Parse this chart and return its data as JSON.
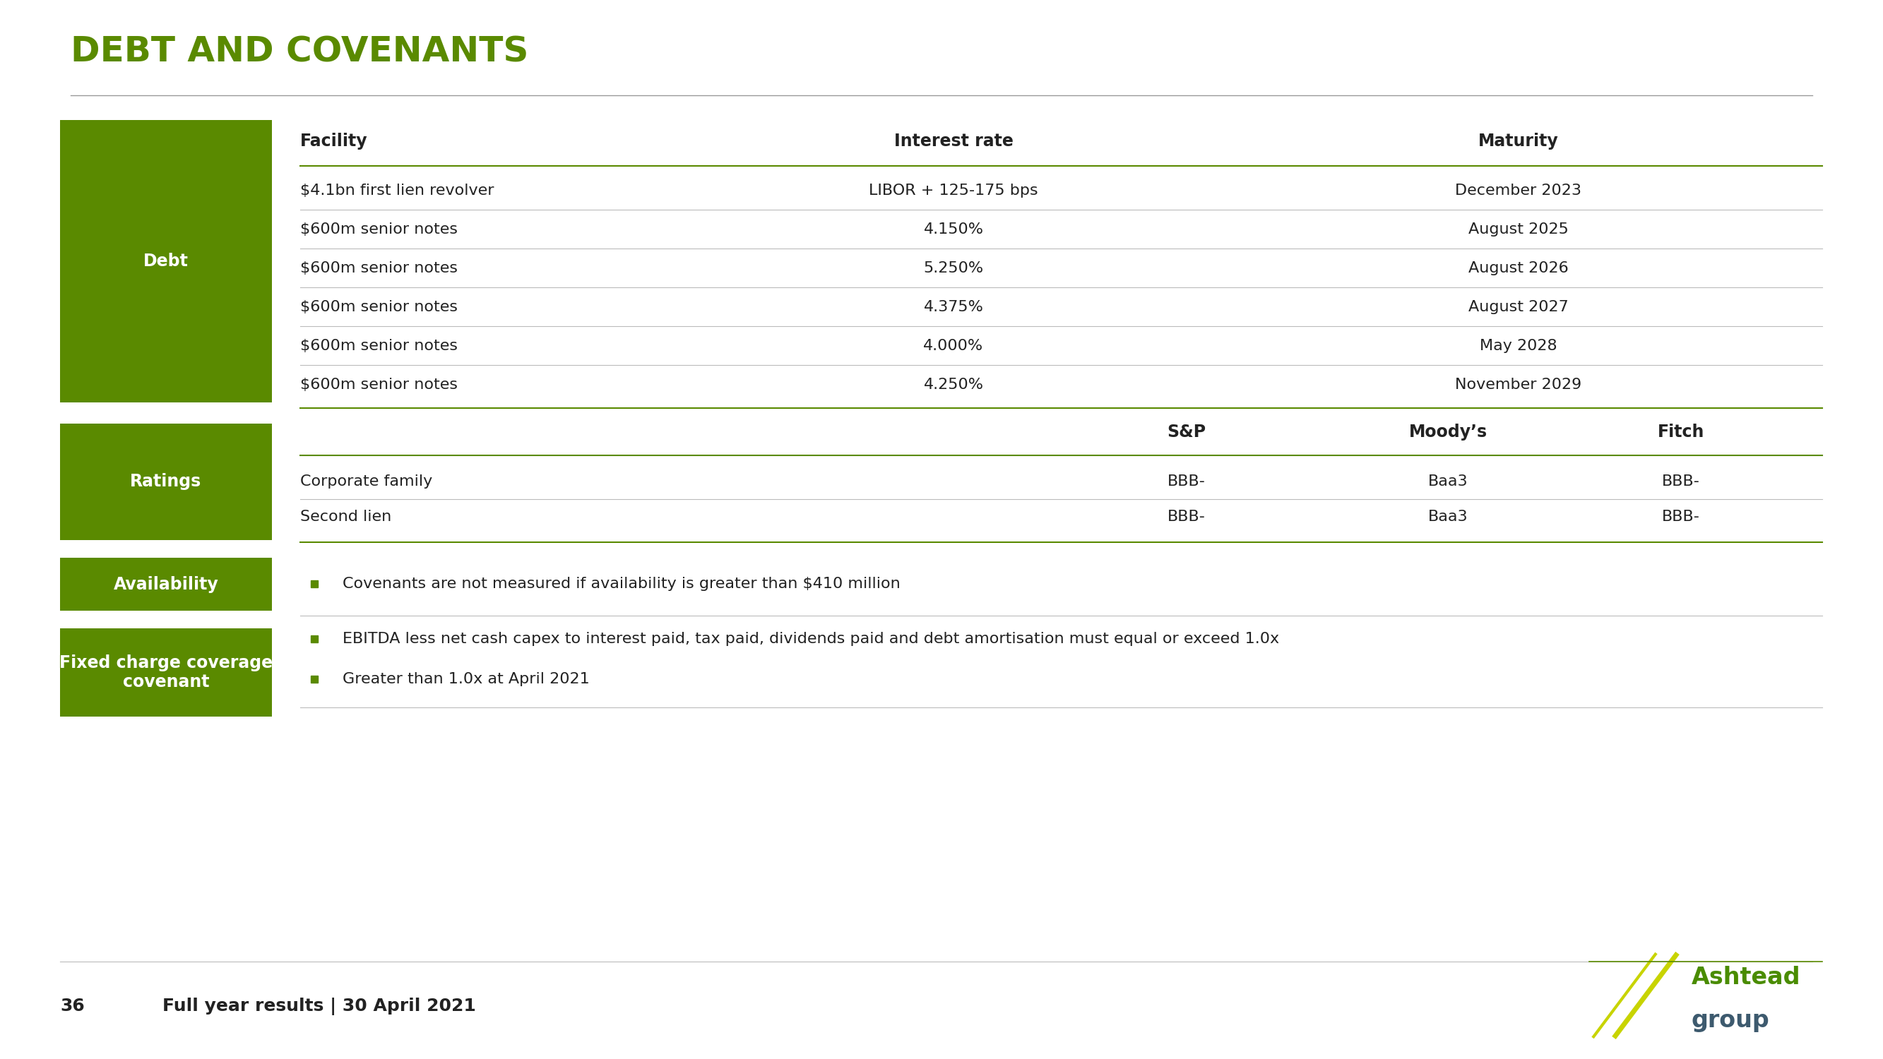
{
  "title": "DEBT AND COVENANTS",
  "title_color": "#5a8a00",
  "background_color": "#ffffff",
  "slide_number": "36",
  "footer_text": "Full year results | 30 April 2021",
  "green_box": "#5a8a00",
  "debt_table_headers": [
    "Facility",
    "Interest rate",
    "Maturity"
  ],
  "debt_table_rows": [
    [
      "$4.1bn first lien revolver",
      "LIBOR + 125-175 bps",
      "December 2023"
    ],
    [
      "$600m senior notes",
      "4.150%",
      "August 2025"
    ],
    [
      "$600m senior notes",
      "5.250%",
      "August 2026"
    ],
    [
      "$600m senior notes",
      "4.375%",
      "August 2027"
    ],
    [
      "$600m senior notes",
      "4.000%",
      "May 2028"
    ],
    [
      "$600m senior notes",
      "4.250%",
      "November 2029"
    ]
  ],
  "ratings_headers_sp": "S&P",
  "ratings_headers_moodys": "Moody’s",
  "ratings_headers_fitch": "Fitch",
  "ratings_rows": [
    [
      "Corporate family",
      "BBB-",
      "Baa3",
      "BBB-"
    ],
    [
      "Second lien",
      "BBB-",
      "Baa3",
      "BBB-"
    ]
  ],
  "availability_text": "Covenants are not measured if availability is greater than $410 million",
  "covenant_texts": [
    "EBITDA less net cash capex to interest paid, tax paid, dividends paid and debt amortisation must equal or exceed 1.0x",
    "Greater than 1.0x at April 2021"
  ],
  "bullet_color": "#5a8a00",
  "line_color": "#bbbbbb",
  "header_line_color": "#5a8a00",
  "title_underline_color": "#999999",
  "logo_green": "#4a8c00",
  "logo_slate": "#3d5a6e",
  "logo_slash_color": "#c8d400"
}
